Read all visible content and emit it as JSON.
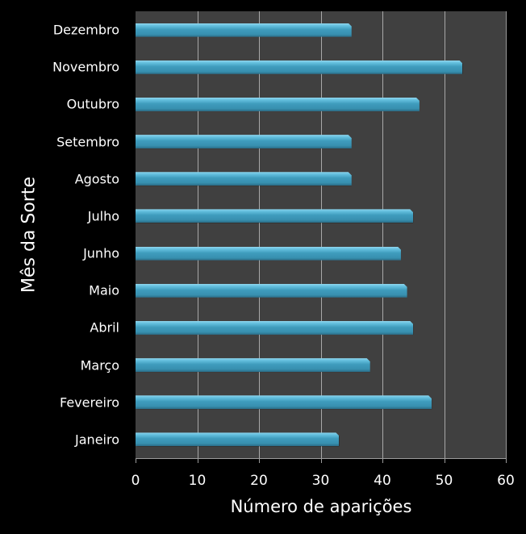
{
  "chart_data": {
    "type": "bar",
    "orientation": "horizontal",
    "title": "",
    "xlabel": "Número de aparições",
    "ylabel": "Mês da Sorte",
    "xlim": [
      0,
      60
    ],
    "xticks": [
      "0",
      "10",
      "20",
      "30",
      "40",
      "50",
      "60"
    ],
    "grid": true,
    "legend": null,
    "categories": [
      "Janeiro",
      "Fevereiro",
      "Março",
      "Abril",
      "Maio",
      "Junho",
      "Julho",
      "Agosto",
      "Setembro",
      "Outubro",
      "Novembro",
      "Dezembro"
    ],
    "values": [
      33,
      48,
      38,
      45,
      44,
      43,
      45,
      35,
      35,
      46,
      53,
      35
    ],
    "bar_color": "#3f9cbd",
    "plot_background": "#404040",
    "figure_background": "#000000"
  },
  "axes": {
    "x_title": "Número de aparições",
    "y_title": "Mês da Sorte",
    "x_ticks": [
      "0",
      "10",
      "20",
      "30",
      "40",
      "50",
      "60"
    ]
  }
}
